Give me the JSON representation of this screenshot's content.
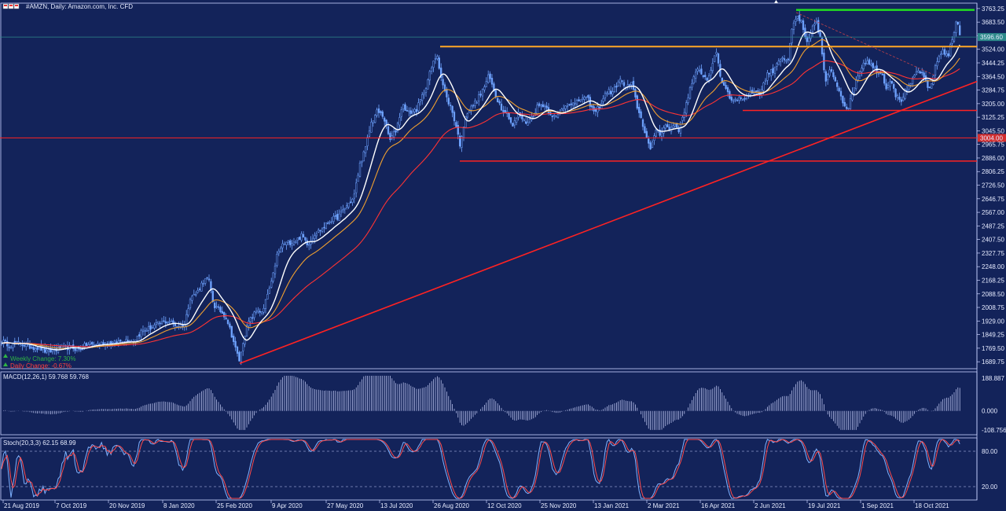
{
  "header": {
    "title": "#AMZN, Daily:  Amazon.com, Inc. CFD"
  },
  "colors": {
    "background": "#13235a",
    "candle": "#6fa3ff",
    "fast_ma": "#ffffff",
    "mid_ma": "#f0a030",
    "slow_ma": "#ff3333",
    "support": "#ff2222",
    "resistance": "#ffa726",
    "top_line": "#22dd22",
    "current_price_tag": "#2e8b8b",
    "red_level_tag": "#d32f2f"
  },
  "price_panel": {
    "weekly_change_label": "Weekly Change: 7.30%",
    "daily_change_label": "Daily Change: -0.67%",
    "current_price_tag": "3596.60",
    "red_level_tag": "3004.00"
  },
  "chart_data": [
    {
      "type": "candlestick",
      "symbol": "#AMZN",
      "timeframe": "Daily",
      "title": "#AMZN, Daily:  Amazon.com, Inc. CFD",
      "x_tick_labels": [
        "21 Aug 2019",
        "7 Oct 2019",
        "20 Nov 2019",
        "8 Jan 2020",
        "25 Feb 2020",
        "9 Apr 2020",
        "27 May 2020",
        "13 Jul 2020",
        "26 Aug 2020",
        "12 Oct 2020",
        "25 Nov 2020",
        "13 Jan 2021",
        "2 Mar 2021",
        "16 Apr 2021",
        "2 Jun 2021",
        "19 Jul 2021",
        "1 Sep 2021",
        "18 Oct 2021"
      ],
      "y_tick_labels": [
        "3763.25",
        "3683.50",
        "3603.75",
        "3524.00",
        "3444.25",
        "3364.50",
        "3284.75",
        "3205.00",
        "3125.25",
        "3045.50",
        "2965.75",
        "2886.00",
        "2806.25",
        "2726.50",
        "2646.75",
        "2567.00",
        "2487.25",
        "2407.50",
        "2327.75",
        "2248.00",
        "2168.25",
        "2088.50",
        "2008.75",
        "1929.00",
        "1849.25",
        "1769.50",
        "1689.75"
      ],
      "ylim": [
        1649,
        3795
      ],
      "close_path": [
        [
          0,
          1815
        ],
        [
          12,
          1790
        ],
        [
          25,
          1800
        ],
        [
          35,
          1780
        ],
        [
          50,
          1770
        ],
        [
          60,
          1745
        ],
        [
          70,
          1760
        ],
        [
          80,
          1770
        ],
        [
          90,
          1775
        ],
        [
          100,
          1760
        ],
        [
          110,
          1790
        ],
        [
          120,
          1790
        ],
        [
          130,
          1800
        ],
        [
          145,
          1800
        ],
        [
          160,
          1820
        ],
        [
          170,
          1810
        ],
        [
          180,
          1870
        ],
        [
          192,
          1890
        ],
        [
          200,
          1910
        ],
        [
          215,
          1930
        ],
        [
          225,
          1900
        ],
        [
          235,
          1910
        ],
        [
          242,
          2070
        ],
        [
          250,
          2090
        ],
        [
          258,
          2160
        ],
        [
          265,
          2180
        ],
        [
          272,
          2020
        ],
        [
          280,
          1990
        ],
        [
          288,
          1950
        ],
        [
          292,
          1890
        ],
        [
          296,
          1830
        ],
        [
          300,
          1760
        ],
        [
          305,
          1690
        ],
        [
          310,
          1830
        ],
        [
          316,
          1920
        ],
        [
          322,
          1960
        ],
        [
          328,
          2000
        ],
        [
          334,
          1970
        ],
        [
          340,
          2080
        ],
        [
          346,
          2160
        ],
        [
          352,
          2310
        ],
        [
          360,
          2380
        ],
        [
          368,
          2390
        ],
        [
          376,
          2400
        ],
        [
          384,
          2430
        ],
        [
          392,
          2380
        ],
        [
          400,
          2440
        ],
        [
          410,
          2470
        ],
        [
          420,
          2520
        ],
        [
          430,
          2540
        ],
        [
          440,
          2600
        ],
        [
          450,
          2650
        ],
        [
          458,
          2850
        ],
        [
          465,
          2940
        ],
        [
          472,
          3090
        ],
        [
          480,
          3160
        ],
        [
          488,
          3130
        ],
        [
          496,
          2990
        ],
        [
          504,
          3050
        ],
        [
          512,
          3200
        ],
        [
          520,
          3150
        ],
        [
          530,
          3170
        ],
        [
          540,
          3280
        ],
        [
          548,
          3400
        ],
        [
          556,
          3500
        ],
        [
          562,
          3340
        ],
        [
          568,
          3240
        ],
        [
          574,
          3180
        ],
        [
          580,
          3080
        ],
        [
          586,
          2950
        ],
        [
          592,
          3140
        ],
        [
          598,
          3170
        ],
        [
          606,
          3220
        ],
        [
          614,
          3280
        ],
        [
          622,
          3370
        ],
        [
          630,
          3260
        ],
        [
          638,
          3180
        ],
        [
          646,
          3150
        ],
        [
          652,
          3070
        ],
        [
          660,
          3150
        ],
        [
          668,
          3090
        ],
        [
          676,
          3120
        ],
        [
          684,
          3190
        ],
        [
          692,
          3200
        ],
        [
          700,
          3150
        ],
        [
          708,
          3120
        ],
        [
          716,
          3180
        ],
        [
          724,
          3210
        ],
        [
          732,
          3200
        ],
        [
          740,
          3240
        ],
        [
          748,
          3230
        ],
        [
          756,
          3150
        ],
        [
          764,
          3200
        ],
        [
          772,
          3280
        ],
        [
          780,
          3270
        ],
        [
          788,
          3350
        ],
        [
          796,
          3300
        ],
        [
          804,
          3320
        ],
        [
          810,
          3200
        ],
        [
          816,
          3110
        ],
        [
          822,
          3020
        ],
        [
          828,
          2920
        ],
        [
          834,
          3060
        ],
        [
          840,
          3030
        ],
        [
          846,
          3080
        ],
        [
          852,
          3050
        ],
        [
          858,
          3090
        ],
        [
          864,
          3050
        ],
        [
          870,
          3150
        ],
        [
          876,
          3260
        ],
        [
          882,
          3350
        ],
        [
          888,
          3400
        ],
        [
          894,
          3380
        ],
        [
          900,
          3340
        ],
        [
          906,
          3440
        ],
        [
          912,
          3500
        ],
        [
          918,
          3330
        ],
        [
          924,
          3300
        ],
        [
          930,
          3220
        ],
        [
          936,
          3240
        ],
        [
          944,
          3230
        ],
        [
          952,
          3260
        ],
        [
          960,
          3280
        ],
        [
          968,
          3270
        ],
        [
          976,
          3380
        ],
        [
          984,
          3400
        ],
        [
          990,
          3460
        ],
        [
          996,
          3480
        ],
        [
          1002,
          3430
        ],
        [
          1008,
          3650
        ],
        [
          1014,
          3720
        ],
        [
          1020,
          3680
        ],
        [
          1026,
          3550
        ],
        [
          1032,
          3620
        ],
        [
          1038,
          3700
        ],
        [
          1044,
          3580
        ],
        [
          1050,
          3330
        ],
        [
          1056,
          3400
        ],
        [
          1062,
          3350
        ],
        [
          1068,
          3280
        ],
        [
          1074,
          3200
        ],
        [
          1080,
          3180
        ],
        [
          1086,
          3300
        ],
        [
          1092,
          3380
        ],
        [
          1098,
          3440
        ],
        [
          1104,
          3460
        ],
        [
          1110,
          3420
        ],
        [
          1116,
          3400
        ],
        [
          1122,
          3380
        ],
        [
          1128,
          3300
        ],
        [
          1134,
          3350
        ],
        [
          1140,
          3250
        ],
        [
          1146,
          3220
        ],
        [
          1152,
          3280
        ],
        [
          1158,
          3300
        ],
        [
          1164,
          3380
        ],
        [
          1170,
          3400
        ],
        [
          1176,
          3350
        ],
        [
          1182,
          3280
        ],
        [
          1188,
          3380
        ],
        [
          1194,
          3480
        ],
        [
          1200,
          3520
        ],
        [
          1206,
          3480
        ],
        [
          1212,
          3590
        ],
        [
          1218,
          3700
        ],
        [
          1222,
          3600
        ]
      ],
      "horizontal_levels": [
        {
          "name": "resistance",
          "y": 3540,
          "x_from": 560,
          "x_to": 1243
        },
        {
          "name": "top",
          "y": 3755,
          "x_from": 1013,
          "x_to": 1240
        },
        {
          "name": "support-mid",
          "y": 3165,
          "x_from": 945,
          "x_to": 1243
        },
        {
          "name": "support-full",
          "y": 3004,
          "x_from": 0,
          "x_to": 1243
        },
        {
          "name": "support-low",
          "y": 2868,
          "x_from": 585,
          "x_to": 1243
        },
        {
          "name": "current-price",
          "y": 3596,
          "x_from": 0,
          "x_to": 1243
        }
      ],
      "trendlines": [
        {
          "name": "uptrend",
          "from": [
            305,
            1680
          ],
          "to": [
            1243,
            3335
          ]
        },
        {
          "name": "downtrend",
          "from": [
            1013,
            3740
          ],
          "to": [
            1190,
            3370
          ]
        }
      ]
    },
    {
      "type": "histogram",
      "indicator": "MACD(12,26,1) 59.768 59.768",
      "y_tick_labels": [
        "188.887",
        "0.000",
        "-108.756"
      ],
      "ylim": [
        -108.756,
        188.887
      ]
    },
    {
      "type": "line",
      "indicator": "Stoch(20,3,3) 62.15 68.99",
      "y_tick_labels": [
        "80.00",
        "20.00"
      ],
      "levels": [
        80,
        20
      ],
      "ylim": [
        0,
        100
      ]
    }
  ]
}
